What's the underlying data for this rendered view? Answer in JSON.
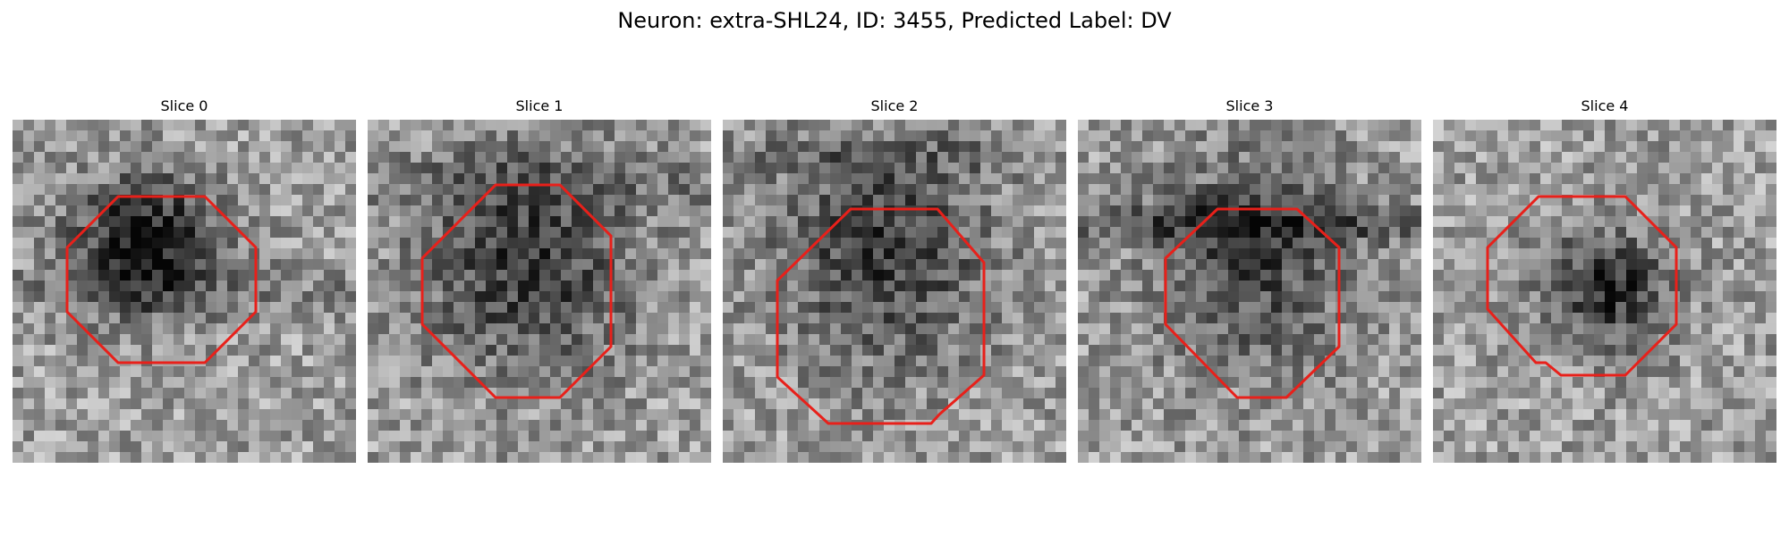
{
  "figure": {
    "title": "Neuron: extra-SHL24, ID: 3455, Predicted Label: DV"
  },
  "slices": [
    {
      "title": "Slice 0"
    },
    {
      "title": "Slice 1"
    },
    {
      "title": "Slice 2"
    },
    {
      "title": "Slice 3"
    },
    {
      "title": "Slice 4"
    }
  ],
  "colors": {
    "contour": "#e8201a",
    "background": "#ffffff"
  },
  "image": {
    "colormap": "grayscale"
  }
}
